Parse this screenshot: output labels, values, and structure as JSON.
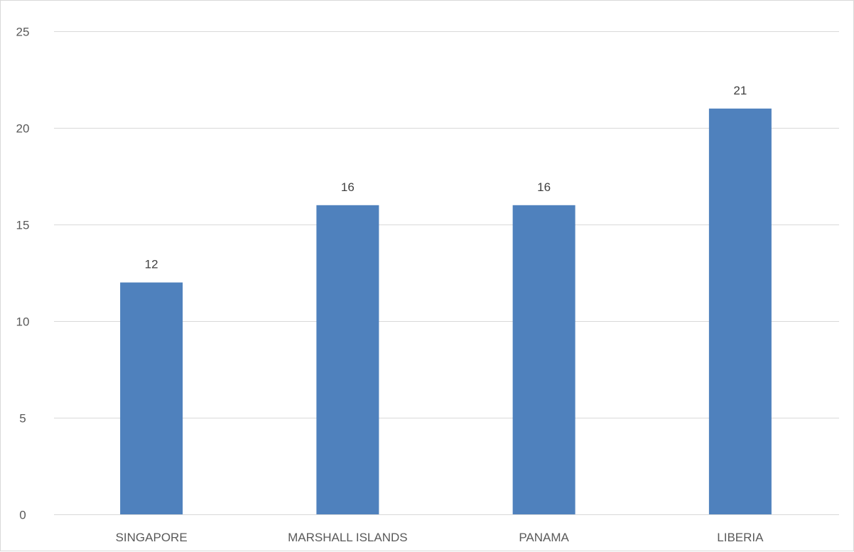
{
  "chart_data": {
    "type": "bar",
    "categories": [
      "SINGAPORE",
      "MARSHALL ISLANDS",
      "PANAMA",
      "LIBERIA"
    ],
    "values": [
      12,
      16,
      16,
      21
    ],
    "data_labels": [
      "12",
      "16",
      "16",
      "21"
    ],
    "title": "",
    "xlabel": "",
    "ylabel": "",
    "ylim": [
      0,
      25
    ],
    "yticks": [
      0,
      5,
      10,
      15,
      20,
      25
    ],
    "ytick_labels": [
      "0",
      "5",
      "10",
      "15",
      "20",
      "25"
    ],
    "grid": true,
    "legend": "none",
    "bar_color": "#4f81bd",
    "gridline_color": "#d9d9d9"
  }
}
